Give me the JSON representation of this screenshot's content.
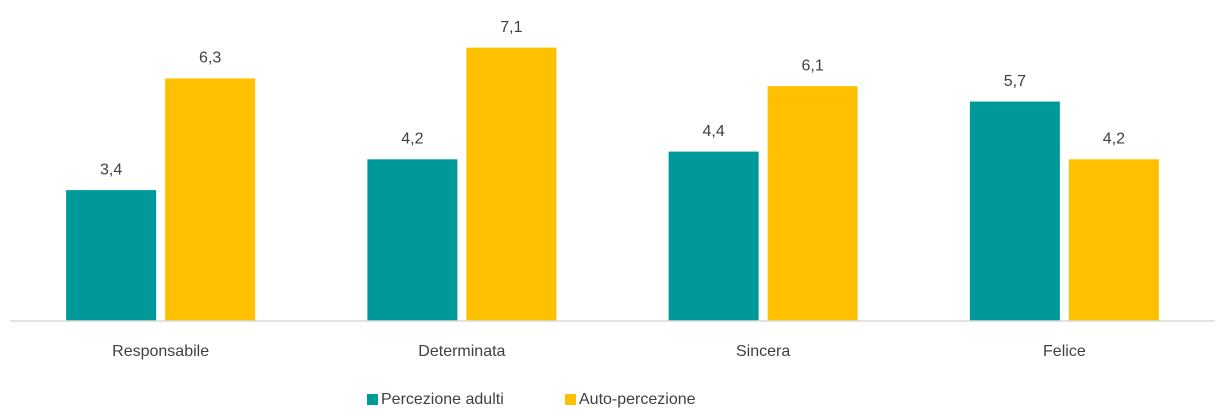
{
  "chart_data": {
    "type": "bar",
    "categories": [
      "Responsabile",
      "Determinata",
      "Sincera",
      "Felice"
    ],
    "series": [
      {
        "name": "Percezione adulti",
        "color": "#009999",
        "values": [
          3.4,
          4.2,
          4.4,
          5.7
        ],
        "value_labels": [
          "3,4",
          "4,2",
          "4,4",
          "5,7"
        ]
      },
      {
        "name": "Auto-percezione",
        "color": "#ffc000",
        "values": [
          6.3,
          7.1,
          6.1,
          4.2
        ],
        "value_labels": [
          "6,3",
          "7,1",
          "6,1",
          "4,2"
        ]
      }
    ],
    "ylim": [
      0,
      8
    ],
    "legend": "bottom"
  }
}
